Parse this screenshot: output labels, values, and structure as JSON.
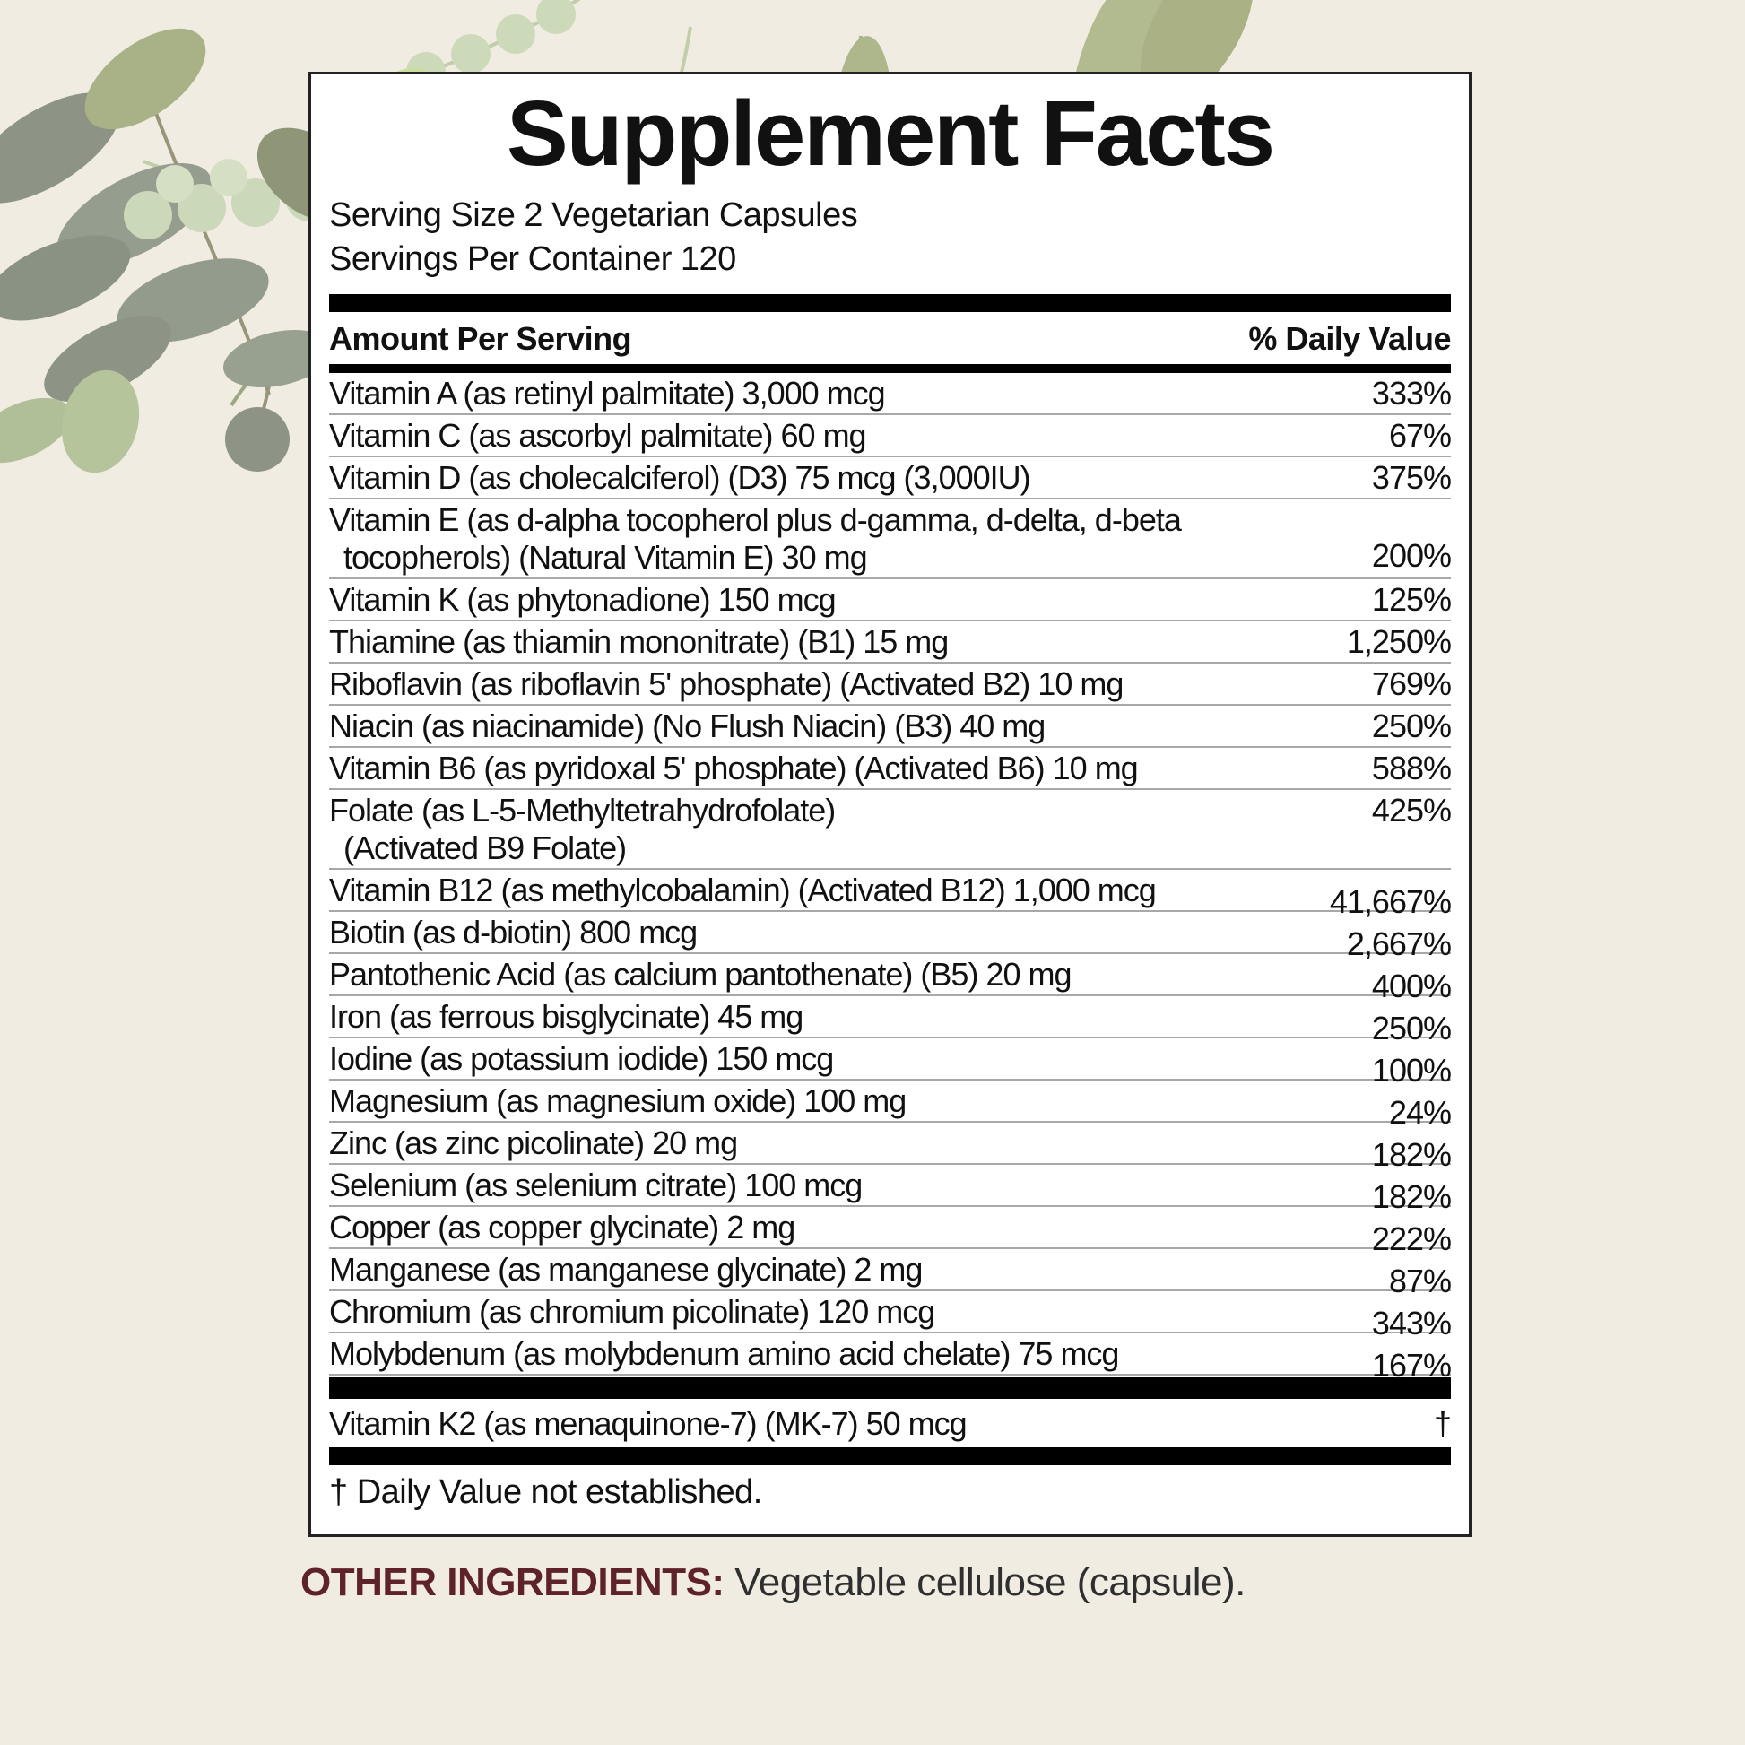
{
  "colors": {
    "background": "#f1ece1",
    "panel_background": "#ffffff",
    "panel_border": "#232323",
    "bar": "#000000",
    "row_separator": "#a8a8a8",
    "text": "#111111",
    "other_ingredients_label": "#5e222d",
    "leaf_sage": "#a9b287",
    "leaf_sage_light": "#b5c49b",
    "leaf_pale": "#ccd8ba",
    "leaf_gray_green": "#8d9486",
    "leaf_olive": "#8f9678"
  },
  "panel": {
    "title": "Supplement Facts",
    "serving_size": "Serving Size 2 Vegetarian Capsules",
    "servings_per_container": "Servings Per Container 120",
    "columns": {
      "amount": "Amount Per Serving",
      "daily_value": "% Daily Value"
    },
    "rows": [
      {
        "label_lines": [
          "Vitamin A (as retinyl palmitate) 3,000 mcg"
        ],
        "dv": "333%",
        "dv_pos": "top"
      },
      {
        "label_lines": [
          "Vitamin C (as ascorbyl palmitate) 60 mg"
        ],
        "dv": "67%",
        "dv_pos": "top"
      },
      {
        "label_lines": [
          "Vitamin D (as cholecalciferol) (D3) 75 mcg (3,000IU)"
        ],
        "dv": "375%",
        "dv_pos": "top"
      },
      {
        "label_lines": [
          "Vitamin E (as d-alpha tocopherol plus d-gamma, d-delta, d-beta",
          "tocopherols) (Natural Vitamin E) 30 mg"
        ],
        "dv": "200%",
        "dv_pos": "bottom"
      },
      {
        "label_lines": [
          "Vitamin K (as phytonadione) 150 mcg"
        ],
        "dv": "125%",
        "dv_pos": "top"
      },
      {
        "label_lines": [
          "Thiamine (as thiamin mononitrate) (B1) 15 mg"
        ],
        "dv": "1,250%",
        "dv_pos": "top"
      },
      {
        "label_lines": [
          "Riboflavin (as riboflavin 5' phosphate) (Activated B2) 10 mg"
        ],
        "dv": "769%",
        "dv_pos": "top"
      },
      {
        "label_lines": [
          "Niacin (as niacinamide) (No Flush Niacin) (B3) 40 mg"
        ],
        "dv": "250%",
        "dv_pos": "top"
      },
      {
        "label_lines": [
          "Vitamin B6 (as pyridoxal 5' phosphate) (Activated B6) 10 mg"
        ],
        "dv": "588%",
        "dv_pos": "top"
      },
      {
        "label_lines": [
          "Folate (as L-5-Methyltetrahydrofolate)",
          "(Activated B9 Folate)"
        ],
        "dv": "425%",
        "dv_pos": "top"
      },
      {
        "label_lines": [
          "Vitamin B12 (as methylcobalamin) (Activated B12) 1,000 mcg"
        ],
        "dv": "41,667%",
        "dv_pos": "low"
      },
      {
        "label_lines": [
          "Biotin (as d-biotin) 800 mcg"
        ],
        "dv": "2,667%",
        "dv_pos": "low"
      },
      {
        "label_lines": [
          "Pantothenic Acid (as calcium pantothenate) (B5) 20 mg"
        ],
        "dv": "400%",
        "dv_pos": "low"
      },
      {
        "label_lines": [
          "Iron (as ferrous bisglycinate) 45 mg"
        ],
        "dv": "250%",
        "dv_pos": "low"
      },
      {
        "label_lines": [
          "Iodine (as potassium iodide) 150 mcg"
        ],
        "dv": "100%",
        "dv_pos": "low"
      },
      {
        "label_lines": [
          "Magnesium (as magnesium oxide) 100 mg"
        ],
        "dv": "24%",
        "dv_pos": "low"
      },
      {
        "label_lines": [
          "Zinc (as zinc picolinate) 20 mg"
        ],
        "dv": "182%",
        "dv_pos": "low"
      },
      {
        "label_lines": [
          "Selenium (as selenium citrate) 100 mcg"
        ],
        "dv": "182%",
        "dv_pos": "low"
      },
      {
        "label_lines": [
          "Copper (as copper glycinate) 2 mg"
        ],
        "dv": "222%",
        "dv_pos": "low"
      },
      {
        "label_lines": [
          "Manganese (as manganese glycinate) 2 mg"
        ],
        "dv": "87%",
        "dv_pos": "low"
      },
      {
        "label_lines": [
          "Chromium (as chromium picolinate) 120 mcg"
        ],
        "dv": "343%",
        "dv_pos": "low"
      },
      {
        "label_lines": [
          "Molybdenum (as molybdenum amino acid chelate) 75 mcg"
        ],
        "dv": "167%",
        "dv_pos": "low"
      }
    ],
    "k2_row": {
      "label": "Vitamin K2 (as menaquinone-7) (MK-7) 50 mcg",
      "dv": "†"
    },
    "footnote": "† Daily Value not established."
  },
  "other_ingredients": {
    "label": "OTHER INGREDIENTS:",
    "text": " Vegetable cellulose (capsule)."
  }
}
